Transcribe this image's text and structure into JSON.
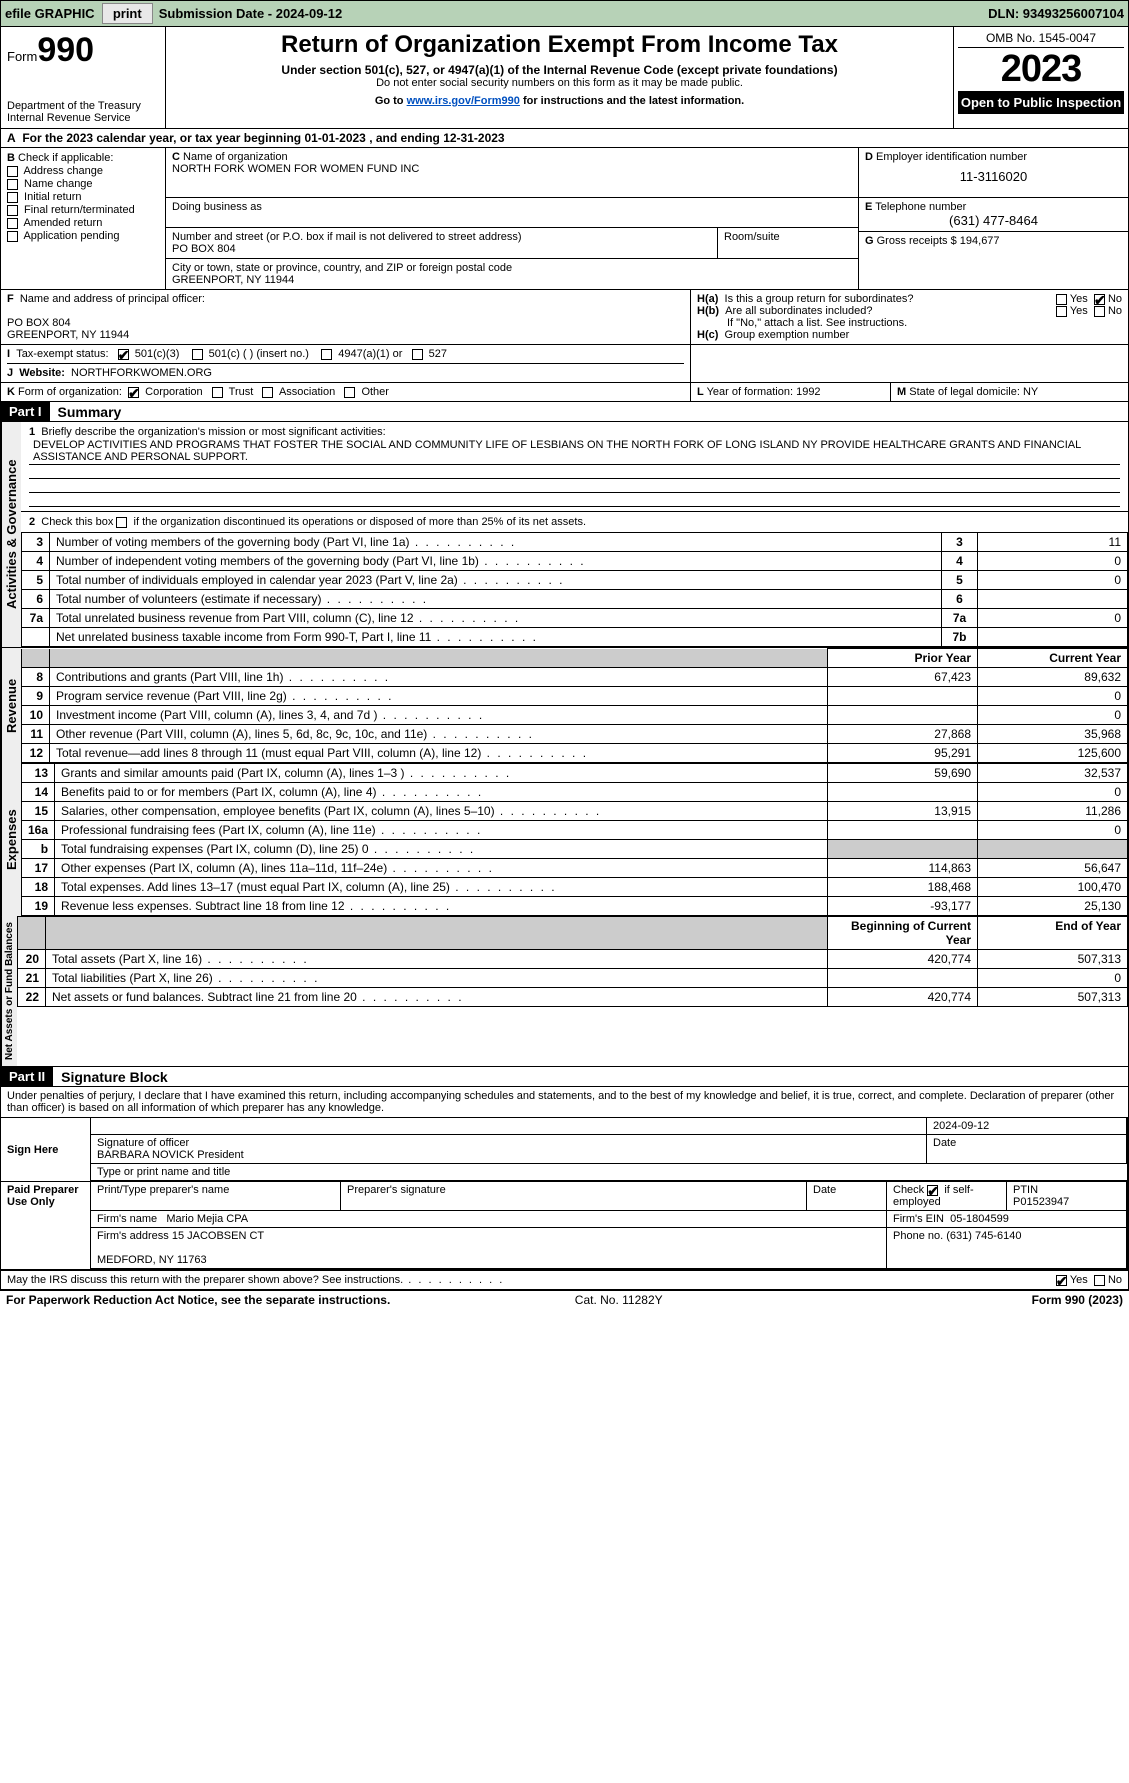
{
  "topbar": {
    "efile": "efile GRAPHIC",
    "print": "print",
    "submission": "Submission Date - 2024-09-12",
    "dln": "DLN: 93493256007104"
  },
  "header": {
    "form_label": "Form",
    "form_number": "990",
    "dept": "Department of the Treasury",
    "irs": "Internal Revenue Service",
    "title": "Return of Organization Exempt From Income Tax",
    "subtitle": "Under section 501(c), 527, or 4947(a)(1) of the Internal Revenue Code (except private foundations)",
    "ssn_note": "Do not enter social security numbers on this form as it may be made public.",
    "goto_pre": "Go to ",
    "goto_link": "www.irs.gov/Form990",
    "goto_post": " for instructions and the latest information.",
    "omb": "OMB No. 1545-0047",
    "year": "2023",
    "inspect": "Open to Public Inspection"
  },
  "period": {
    "text_a": "For the 2023 calendar year, or tax year beginning ",
    "begin": "01-01-2023",
    "text_b": " , and ending ",
    "end": "12-31-2023"
  },
  "boxB": {
    "label": "Check if applicable:",
    "items": [
      "Address change",
      "Name change",
      "Initial return",
      "Final return/terminated",
      "Amended return",
      "Application pending"
    ]
  },
  "boxC": {
    "name_label": "Name of organization",
    "name": "NORTH FORK WOMEN FOR WOMEN FUND INC",
    "dba_label": "Doing business as",
    "street_label": "Number and street (or P.O. box if mail is not delivered to street address)",
    "street": "PO BOX 804",
    "room_label": "Room/suite",
    "city_label": "City or town, state or province, country, and ZIP or foreign postal code",
    "city": "GREENPORT, NY  11944"
  },
  "boxD": {
    "label": "Employer identification number",
    "value": "11-3116020"
  },
  "boxE": {
    "label": "Telephone number",
    "value": "(631) 477-8464"
  },
  "boxG": {
    "label": "Gross receipts $",
    "value": "194,677"
  },
  "boxF": {
    "label": "Name and address of principal officer:",
    "line1": "PO BOX 804",
    "line2": "GREENPORT, NY  11944"
  },
  "boxH": {
    "a_label": "Is this a group return for subordinates?",
    "b_label": "Are all subordinates included?",
    "b_note": "If \"No,\" attach a list. See instructions.",
    "c_label": "Group exemption number",
    "yes": "Yes",
    "no": "No"
  },
  "boxI": {
    "label": "Tax-exempt status:",
    "opts": [
      "501(c)(3)",
      "501(c) (  ) (insert no.)",
      "4947(a)(1) or",
      "527"
    ]
  },
  "boxJ": {
    "label": "Website:",
    "value": "NORTHFORKWOMEN.ORG"
  },
  "boxK": {
    "label": "Form of organization:",
    "opts": [
      "Corporation",
      "Trust",
      "Association",
      "Other"
    ]
  },
  "boxL": {
    "label": "Year of formation:",
    "value": "1992"
  },
  "boxM": {
    "label": "State of legal domicile:",
    "value": "NY"
  },
  "part1": {
    "bar": "Part I",
    "title": "Summary"
  },
  "summary": {
    "line1_label": "Briefly describe the organization's mission or most significant activities:",
    "mission": "DEVELOP ACTIVITIES AND PROGRAMS THAT FOSTER THE SOCIAL AND COMMUNITY LIFE OF LESBIANS ON THE NORTH FORK OF LONG ISLAND NY PROVIDE HEALTHCARE GRANTS AND FINANCIAL ASSISTANCE AND PERSONAL SUPPORT.",
    "line2": "Check this box      if the organization discontinued its operations or disposed of more than 25% of its net assets.",
    "rows_gov": [
      {
        "n": "3",
        "d": "Number of voting members of the governing body (Part VI, line 1a)",
        "box": "3",
        "v": "11"
      },
      {
        "n": "4",
        "d": "Number of independent voting members of the governing body (Part VI, line 1b)",
        "box": "4",
        "v": "0"
      },
      {
        "n": "5",
        "d": "Total number of individuals employed in calendar year 2023 (Part V, line 2a)",
        "box": "5",
        "v": "0"
      },
      {
        "n": "6",
        "d": "Total number of volunteers (estimate if necessary)",
        "box": "6",
        "v": ""
      },
      {
        "n": "7a",
        "d": "Total unrelated business revenue from Part VIII, column (C), line 12",
        "box": "7a",
        "v": "0"
      },
      {
        "n": "",
        "d": "Net unrelated business taxable income from Form 990-T, Part I, line 11",
        "box": "7b",
        "v": ""
      }
    ],
    "col_prior": "Prior Year",
    "col_current": "Current Year",
    "rows_rev": [
      {
        "n": "8",
        "d": "Contributions and grants (Part VIII, line 1h)",
        "p": "67,423",
        "c": "89,632"
      },
      {
        "n": "9",
        "d": "Program service revenue (Part VIII, line 2g)",
        "p": "",
        "c": "0"
      },
      {
        "n": "10",
        "d": "Investment income (Part VIII, column (A), lines 3, 4, and 7d )",
        "p": "",
        "c": "0"
      },
      {
        "n": "11",
        "d": "Other revenue (Part VIII, column (A), lines 5, 6d, 8c, 9c, 10c, and 11e)",
        "p": "27,868",
        "c": "35,968"
      },
      {
        "n": "12",
        "d": "Total revenue—add lines 8 through 11 (must equal Part VIII, column (A), line 12)",
        "p": "95,291",
        "c": "125,600"
      }
    ],
    "rows_exp": [
      {
        "n": "13",
        "d": "Grants and similar amounts paid (Part IX, column (A), lines 1–3 )",
        "p": "59,690",
        "c": "32,537"
      },
      {
        "n": "14",
        "d": "Benefits paid to or for members (Part IX, column (A), line 4)",
        "p": "",
        "c": "0"
      },
      {
        "n": "15",
        "d": "Salaries, other compensation, employee benefits (Part IX, column (A), lines 5–10)",
        "p": "13,915",
        "c": "11,286"
      },
      {
        "n": "16a",
        "d": "Professional fundraising fees (Part IX, column (A), line 11e)",
        "p": "",
        "c": "0"
      },
      {
        "n": "b",
        "d": "Total fundraising expenses (Part IX, column (D), line 25) 0",
        "p": "__shade__",
        "c": "__shade__"
      },
      {
        "n": "17",
        "d": "Other expenses (Part IX, column (A), lines 11a–11d, 11f–24e)",
        "p": "114,863",
        "c": "56,647"
      },
      {
        "n": "18",
        "d": "Total expenses. Add lines 13–17 (must equal Part IX, column (A), line 25)",
        "p": "188,468",
        "c": "100,470"
      },
      {
        "n": "19",
        "d": "Revenue less expenses. Subtract line 18 from line 12",
        "p": "-93,177",
        "c": "25,130"
      }
    ],
    "col_begin": "Beginning of Current Year",
    "col_end": "End of Year",
    "rows_net": [
      {
        "n": "20",
        "d": "Total assets (Part X, line 16)",
        "p": "420,774",
        "c": "507,313"
      },
      {
        "n": "21",
        "d": "Total liabilities (Part X, line 26)",
        "p": "",
        "c": "0"
      },
      {
        "n": "22",
        "d": "Net assets or fund balances. Subtract line 21 from line 20",
        "p": "420,774",
        "c": "507,313"
      }
    ],
    "tab_gov": "Activities & Governance",
    "tab_rev": "Revenue",
    "tab_exp": "Expenses",
    "tab_net": "Net Assets or Fund Balances"
  },
  "part2": {
    "bar": "Part II",
    "title": "Signature Block"
  },
  "sig": {
    "perjury": "Under penalties of perjury, I declare that I have examined this return, including accompanying schedules and statements, and to the best of my knowledge and belief, it is true, correct, and complete. Declaration of preparer (other than officer) is based on all information of which preparer has any knowledge.",
    "sign_here": "Sign Here",
    "sig_officer": "Signature of officer",
    "sig_date": "2024-09-12",
    "officer_name": "BARBARA NOVICK President",
    "type_name": "Type or print name and title",
    "date_lbl": "Date",
    "paid": "Paid Preparer Use Only",
    "prep_name_lbl": "Print/Type preparer's name",
    "prep_sig_lbl": "Preparer's signature",
    "check_self": "Check",
    "self_emp": "if self-employed",
    "ptin_lbl": "PTIN",
    "ptin": "P01523947",
    "firm_name_lbl": "Firm's name",
    "firm_name": "Mario Mejia CPA",
    "firm_ein_lbl": "Firm's EIN",
    "firm_ein": "05-1804599",
    "firm_addr_lbl": "Firm's address",
    "firm_addr1": "15 JACOBSEN CT",
    "firm_addr2": "MEDFORD, NY  11763",
    "phone_lbl": "Phone no.",
    "phone": "(631) 745-6140",
    "discuss": "May the IRS discuss this return with the preparer shown above? See instructions."
  },
  "footer": {
    "left": "For Paperwork Reduction Act Notice, see the separate instructions.",
    "mid": "Cat. No. 11282Y",
    "right": "Form 990 (2023)"
  }
}
